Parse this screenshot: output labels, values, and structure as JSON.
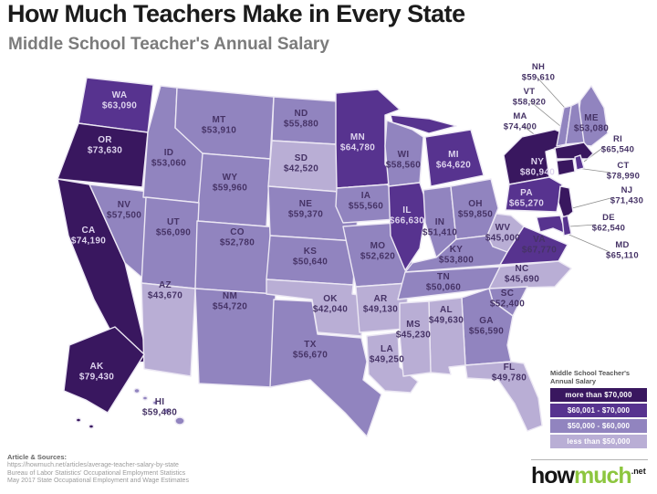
{
  "page": {
    "title": "How Much Teachers Make in Every State",
    "subtitle": "Middle School Teacher's Annual Salary"
  },
  "sources": {
    "heading": "Article & Sources:",
    "lines": [
      "https://howmuch.net/articles/average-teacher-salary-by-state",
      "Bureau of Labor Statistics' Occupational Employment Statistics",
      "May 2017 State Occupational Employment and Wage Estimates"
    ]
  },
  "logo": {
    "part1": "how",
    "part2": "much",
    "suffix": ".net"
  },
  "chart_data": {
    "type": "choropleth-map",
    "title": "How Much Teachers Make in Every State",
    "subtitle": "Middle School Teacher's Annual Salary",
    "legend_title": "Middle School Teacher's Annual Salary",
    "label_colors": {
      "light": "#ded4ee",
      "dark": "#463366"
    },
    "bins": [
      {
        "id": "gt70",
        "label": "more than $70,000",
        "color": "#39175f",
        "label_style": "light"
      },
      {
        "id": "b60to70",
        "label": "$60,001 - $70,000",
        "color": "#57338f",
        "label_style": "light"
      },
      {
        "id": "b50to60",
        "label": "$50,000 - $60,000",
        "color": "#9184bf",
        "label_style": "dark"
      },
      {
        "id": "lt50",
        "label": "less than $50,000",
        "color": "#b9aed5",
        "label_style": "dark"
      }
    ],
    "states": [
      {
        "code": "WA",
        "salary": 63090,
        "label": "$63,090",
        "bin": "b60to70"
      },
      {
        "code": "OR",
        "salary": 73630,
        "label": "$73,630",
        "bin": "gt70"
      },
      {
        "code": "CA",
        "salary": 74190,
        "label": "$74,190",
        "bin": "gt70"
      },
      {
        "code": "ID",
        "salary": 53060,
        "label": "$53,060",
        "bin": "b50to60"
      },
      {
        "code": "NV",
        "salary": 57500,
        "label": "$57,500",
        "bin": "b50to60"
      },
      {
        "code": "UT",
        "salary": 56090,
        "label": "$56,090",
        "bin": "b50to60"
      },
      {
        "code": "AZ",
        "salary": 43670,
        "label": "$43,670",
        "bin": "lt50"
      },
      {
        "code": "MT",
        "salary": 53910,
        "label": "$53,910",
        "bin": "b50to60"
      },
      {
        "code": "WY",
        "salary": 59960,
        "label": "$59,960",
        "bin": "b50to60"
      },
      {
        "code": "CO",
        "salary": 52780,
        "label": "$52,780",
        "bin": "b50to60"
      },
      {
        "code": "NM",
        "salary": 54720,
        "label": "$54,720",
        "bin": "b50to60"
      },
      {
        "code": "ND",
        "salary": 55880,
        "label": "$55,880",
        "bin": "b50to60"
      },
      {
        "code": "SD",
        "salary": 42520,
        "label": "$42,520",
        "bin": "lt50"
      },
      {
        "code": "NE",
        "salary": 59370,
        "label": "$59,370",
        "bin": "b50to60"
      },
      {
        "code": "KS",
        "salary": 50640,
        "label": "$50,640",
        "bin": "b50to60"
      },
      {
        "code": "OK",
        "salary": 42040,
        "label": "$42,040",
        "bin": "lt50"
      },
      {
        "code": "TX",
        "salary": 56670,
        "label": "$56,670",
        "bin": "b50to60"
      },
      {
        "code": "MN",
        "salary": 64780,
        "label": "$64,780",
        "bin": "b60to70"
      },
      {
        "code": "IA",
        "salary": 55560,
        "label": "$55,560",
        "bin": "b50to60"
      },
      {
        "code": "MO",
        "salary": 52620,
        "label": "$52,620",
        "bin": "b50to60"
      },
      {
        "code": "AR",
        "salary": 49130,
        "label": "$49,130",
        "bin": "lt50"
      },
      {
        "code": "LA",
        "salary": 49250,
        "label": "$49,250",
        "bin": "lt50"
      },
      {
        "code": "WI",
        "salary": 58560,
        "label": "$58,560",
        "bin": "b50to60"
      },
      {
        "code": "IL",
        "salary": 66630,
        "label": "$66,630",
        "bin": "b60to70"
      },
      {
        "code": "MI",
        "salary": 64620,
        "label": "$64,620",
        "bin": "b60to70"
      },
      {
        "code": "IN",
        "salary": 51410,
        "label": "$51,410",
        "bin": "b50to60"
      },
      {
        "code": "OH",
        "salary": 59850,
        "label": "$59,850",
        "bin": "b50to60"
      },
      {
        "code": "KY",
        "salary": 53800,
        "label": "$53,800",
        "bin": "b50to60"
      },
      {
        "code": "TN",
        "salary": 50060,
        "label": "$50,060",
        "bin": "b50to60"
      },
      {
        "code": "MS",
        "salary": 45230,
        "label": "$45,230",
        "bin": "lt50"
      },
      {
        "code": "AL",
        "salary": 49630,
        "label": "$49,630",
        "bin": "lt50"
      },
      {
        "code": "GA",
        "salary": 56590,
        "label": "$56,590",
        "bin": "b50to60"
      },
      {
        "code": "FL",
        "salary": 49780,
        "label": "$49,780",
        "bin": "lt50"
      },
      {
        "code": "WV",
        "salary": 45000,
        "label": "$45,000",
        "bin": "lt50"
      },
      {
        "code": "VA",
        "salary": 67770,
        "label": "$67,770",
        "bin": "b60to70",
        "label_style": "dark"
      },
      {
        "code": "NC",
        "salary": 45690,
        "label": "$45,690",
        "bin": "lt50"
      },
      {
        "code": "SC",
        "salary": 52400,
        "label": "$52,400",
        "bin": "b50to60"
      },
      {
        "code": "NY",
        "salary": 80940,
        "label": "$80,940",
        "bin": "gt70"
      },
      {
        "code": "PA",
        "salary": 65270,
        "label": "$65,270",
        "bin": "b60to70"
      },
      {
        "code": "NJ",
        "salary": 71430,
        "label": "$71,430",
        "bin": "gt70",
        "label_style": "dark"
      },
      {
        "code": "CT",
        "salary": 78990,
        "label": "$78,990",
        "bin": "gt70",
        "label_style": "dark"
      },
      {
        "code": "RI",
        "salary": 65540,
        "label": "$65,540",
        "bin": "b60to70",
        "label_style": "dark"
      },
      {
        "code": "MA",
        "salary": 74400,
        "label": "$74,400",
        "bin": "gt70",
        "label_style": "dark"
      },
      {
        "code": "VT",
        "salary": 58920,
        "label": "$58,920",
        "bin": "b50to60"
      },
      {
        "code": "NH",
        "salary": 59610,
        "label": "$59,610",
        "bin": "b50to60"
      },
      {
        "code": "ME",
        "salary": 53080,
        "label": "$53,080",
        "bin": "b50to60"
      },
      {
        "code": "DE",
        "salary": 62540,
        "label": "$62,540",
        "bin": "b60to70",
        "label_style": "dark"
      },
      {
        "code": "MD",
        "salary": 65110,
        "label": "$65,110",
        "bin": "b60to70",
        "label_style": "dark"
      },
      {
        "code": "AK",
        "salary": 79430,
        "label": "$79,430",
        "bin": "gt70"
      },
      {
        "code": "HI",
        "salary": 59480,
        "label": "$59,480",
        "bin": "b50to60"
      }
    ]
  }
}
